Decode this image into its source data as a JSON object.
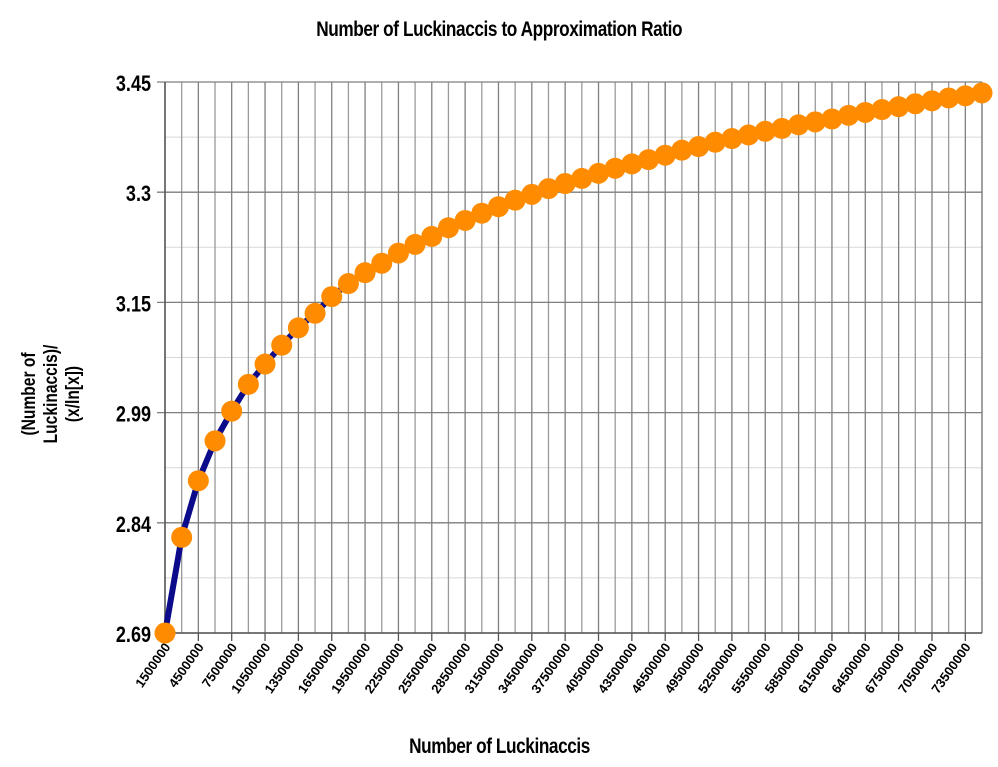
{
  "chart_data": {
    "type": "line",
    "title": "Number of Luckinaccis to Approximation Ratio",
    "xlabel": "Number of Luckinaccis",
    "ylabel": "(Number of Luckinaccis)/ (x/ln[x])",
    "x_tick_labels": [
      "1500000",
      "4500000",
      "7500000",
      "10500000",
      "13500000",
      "16500000",
      "19500000",
      "22500000",
      "25500000",
      "28500000",
      "31500000",
      "34500000",
      "37500000",
      "40500000",
      "43500000",
      "46500000",
      "49500000",
      "52500000",
      "55500000",
      "58500000",
      "61500000",
      "64500000",
      "67500000",
      "70500000",
      "73500000"
    ],
    "y_tick_labels": [
      "3.45",
      "3.3",
      "3.15",
      "2.99",
      "2.84",
      "2.69"
    ],
    "ylim": [
      2.69,
      3.45
    ],
    "xlim": [
      1500000,
      75000000
    ],
    "grid": true,
    "legend": "none",
    "colors": {
      "line": "#0b0b8c",
      "marker": "#ff8c00"
    },
    "series": [
      {
        "x": [
          1500000,
          3000000,
          4500000,
          6000000,
          7500000,
          9000000,
          10500000,
          12000000,
          13500000,
          15000000,
          16500000,
          18000000,
          19500000,
          21000000,
          22500000,
          24000000,
          25500000,
          27000000,
          28500000,
          30000000,
          31500000,
          33000000,
          34500000,
          36000000,
          37500000,
          39000000,
          40500000,
          42000000,
          43500000,
          45000000,
          46500000,
          48000000,
          49500000,
          51000000,
          52500000,
          54000000,
          55500000,
          57000000,
          58500000,
          60000000,
          61500000,
          63000000,
          64500000,
          66000000,
          67500000,
          69000000,
          70500000,
          72000000,
          73500000,
          75000000
        ],
        "values": [
          2.69,
          2.822,
          2.9,
          2.955,
          2.996,
          3.033,
          3.061,
          3.087,
          3.111,
          3.131,
          3.154,
          3.172,
          3.187,
          3.2,
          3.214,
          3.226,
          3.237,
          3.249,
          3.259,
          3.269,
          3.278,
          3.287,
          3.295,
          3.303,
          3.31,
          3.317,
          3.324,
          3.331,
          3.337,
          3.343,
          3.349,
          3.356,
          3.361,
          3.367,
          3.372,
          3.377,
          3.382,
          3.386,
          3.391,
          3.395,
          3.399,
          3.404,
          3.408,
          3.412,
          3.416,
          3.42,
          3.424,
          3.428,
          3.431,
          3.435
        ]
      }
    ]
  }
}
